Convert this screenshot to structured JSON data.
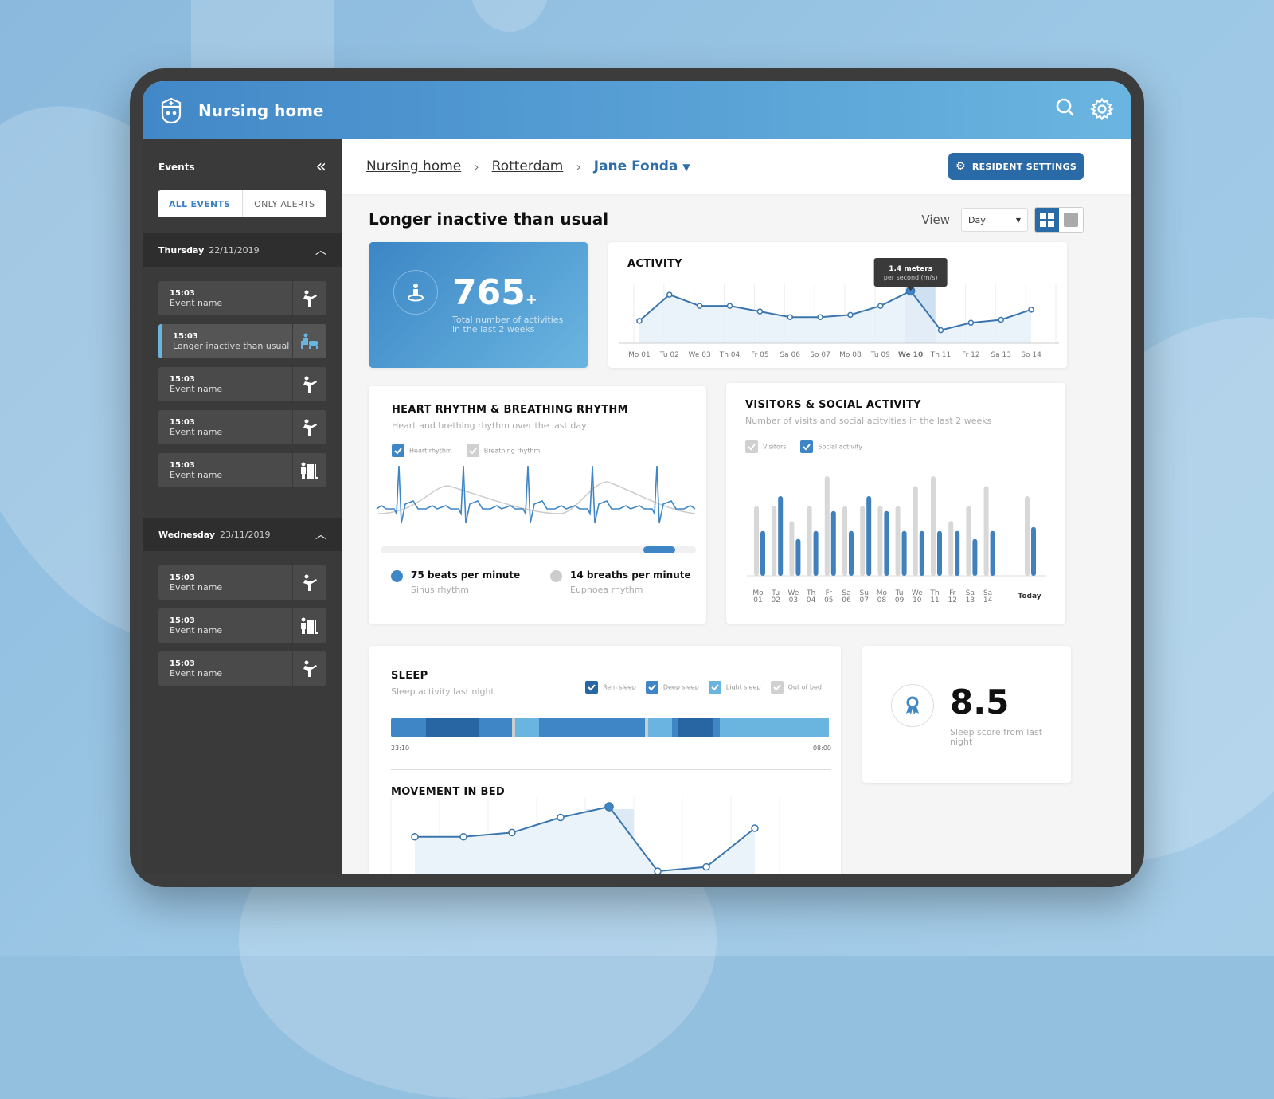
{
  "app": {
    "title": "Nursing home"
  },
  "sidebar": {
    "title": "Events",
    "collapse_icon": "double-chevron-left-icon",
    "filter": {
      "all": "ALL EVENTS",
      "alerts": "ONLY ALERTS"
    },
    "groups": [
      {
        "day": "Thursday",
        "date": "22/11/2019",
        "events": [
          {
            "time": "15:03",
            "name": "Event name",
            "icon": "fall-icon"
          },
          {
            "time": "15:03",
            "name": "Longer inactive than usual",
            "icon": "inactive-icon",
            "active": true
          },
          {
            "time": "15:03",
            "name": "Event name",
            "icon": "fall-icon"
          },
          {
            "time": "15:03",
            "name": "Event name",
            "icon": "fall-icon"
          },
          {
            "time": "15:03",
            "name": "Event name",
            "icon": "door-exit-icon"
          }
        ]
      },
      {
        "day": "Wednesday",
        "date": "23/11/2019",
        "events": [
          {
            "time": "15:03",
            "name": "Event name",
            "icon": "fall-icon"
          },
          {
            "time": "15:03",
            "name": "Event name",
            "icon": "door-exit-icon"
          },
          {
            "time": "15:03",
            "name": "Event name",
            "icon": "fall-icon"
          }
        ]
      }
    ]
  },
  "breadcrumb": {
    "items": [
      "Nursing home",
      "Rotterdam"
    ],
    "current": "Jane Fonda"
  },
  "resident_settings": "RESIDENT SETTINGS",
  "page_title": "Longer inactive than usual",
  "view": {
    "label": "View",
    "value": "Day"
  },
  "kpi": {
    "value": "765",
    "suffix": "+",
    "desc": "Total number of activities in the last 2 weeks"
  },
  "activity": {
    "title": "ACTIVITY",
    "tooltip": {
      "value": "1.4 meters",
      "unit": "per second (m/s)"
    },
    "labels": [
      "Mo 01",
      "Tu 02",
      "We 03",
      "Th 04",
      "Fr 05",
      "Sa 06",
      "So 07",
      "Mo 08",
      "Tu 09",
      "We 10",
      "Th 11",
      "Fr 12",
      "Sa 13",
      "So 14"
    ],
    "values": [
      0.6,
      1.3,
      1.0,
      1.0,
      0.85,
      0.7,
      0.7,
      0.76,
      1.0,
      1.4,
      0.35,
      0.55,
      0.63,
      0.9
    ],
    "highlight_index": 9
  },
  "heart": {
    "title": "HEART RHYTHM & BREATHING RHYTHM",
    "subtitle": "Heart and brething rhythm over the last day",
    "legend": [
      "Heart rhythm",
      "Breathing rhythm"
    ],
    "heart_stat": "75 beats per minute",
    "heart_sub": "Sinus rhythm",
    "breath_stat": "14 breaths per minute",
    "breath_sub": "Eupnoea rhythm"
  },
  "visitors": {
    "title": "VISITORS & SOCIAL ACTIVITY",
    "subtitle": "Number of visits and social acitvities in the last 2 weeks",
    "legend": [
      "Visitors",
      "Social activity"
    ],
    "labels": [
      [
        "Mo",
        "01"
      ],
      [
        "Tu",
        "02"
      ],
      [
        "We",
        "03"
      ],
      [
        "Th",
        "04"
      ],
      [
        "Fr",
        "05"
      ],
      [
        "Sa",
        "06"
      ],
      [
        "Su",
        "07"
      ],
      [
        "Mo",
        "08"
      ],
      [
        "Tu",
        "09"
      ],
      [
        "We",
        "10"
      ],
      [
        "Th",
        "11"
      ],
      [
        "Fr",
        "12"
      ],
      [
        "Sa",
        "13"
      ],
      [
        "Sa",
        "14"
      ]
    ],
    "today_label": "Today",
    "visitors": [
      7,
      7,
      5.5,
      7,
      10,
      7,
      7,
      7,
      7,
      9,
      10,
      5.5,
      7,
      9,
      8
    ],
    "social": [
      4.5,
      8,
      3.7,
      4.5,
      6.5,
      4.5,
      8,
      6.5,
      4.5,
      4.5,
      4.5,
      4.5,
      3.7,
      4.5,
      4.9
    ]
  },
  "sleep": {
    "title": "SLEEP",
    "subtitle": "Sleep activity last night",
    "legend": [
      "Rem sleep",
      "Deep sleep",
      "Light sleep",
      "Out of bed"
    ],
    "start": "23:10",
    "end": "08:00",
    "segments": [
      {
        "type": "deep",
        "w": 8
      },
      {
        "type": "rem",
        "w": 12
      },
      {
        "type": "deep",
        "w": 7.5
      },
      {
        "type": "out",
        "w": 0.7
      },
      {
        "type": "light",
        "w": 5.5
      },
      {
        "type": "deep",
        "w": 24
      },
      {
        "type": "out",
        "w": 0.7
      },
      {
        "type": "light",
        "w": 5.5
      },
      {
        "type": "deep",
        "w": 1.3
      },
      {
        "type": "rem",
        "w": 8
      },
      {
        "type": "deep",
        "w": 1.5
      },
      {
        "type": "light",
        "w": 24.8
      }
    ]
  },
  "movement": {
    "title": "MOVEMENT IN BED",
    "values": [
      0.3,
      0.3,
      0.4,
      0.75,
      1.0,
      -0.5,
      -0.4,
      0.5
    ]
  },
  "sleep_score": {
    "value": "8.5",
    "desc": "Sleep score from last night"
  },
  "colors": {
    "primary": "#2a6aa6",
    "accent": "#3f86c6",
    "light": "#6ab5e0",
    "rem": "#2866a3",
    "grey": "#d5d5d5"
  }
}
